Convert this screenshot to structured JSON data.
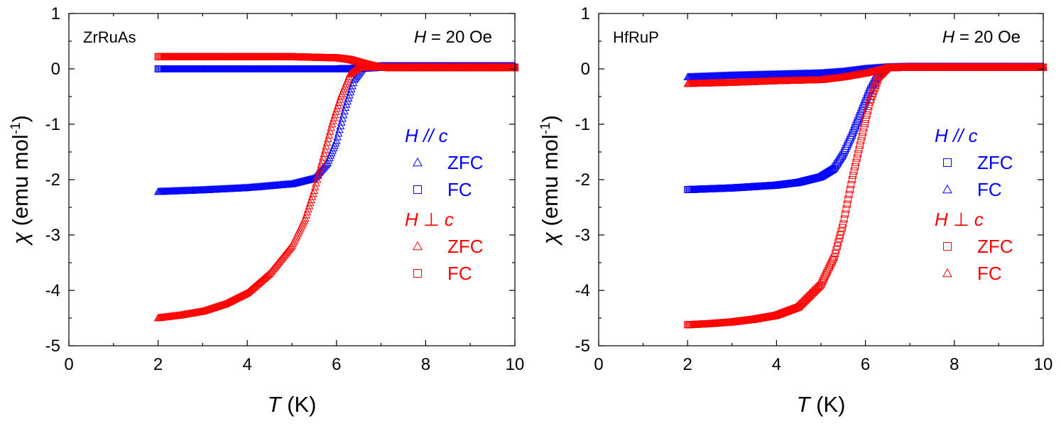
{
  "chart_data": [
    {
      "type": "scatter",
      "sample": "ZrRuAs",
      "field": "H = 20 Oe",
      "xlabel": "T (K)",
      "ylabel": "χ (emu mol-1)",
      "xlim": [
        0,
        10
      ],
      "ylim": [
        -5,
        1
      ],
      "xticks": [
        0,
        2,
        4,
        6,
        8,
        10
      ],
      "yticks": [
        1,
        0,
        -1,
        -2,
        -3,
        -4,
        -5
      ],
      "grid": false,
      "legend_position": "right",
      "legend": [
        {
          "group": "H // c",
          "color": "#0000ff",
          "entries": [
            {
              "marker": "triangle",
              "label": "ZFC"
            },
            {
              "marker": "square",
              "label": "FC"
            }
          ]
        },
        {
          "group": "H ⊥ c",
          "color": "#ff0000",
          "entries": [
            {
              "marker": "triangle",
              "label": "ZFC"
            },
            {
              "marker": "square",
              "label": "FC"
            }
          ]
        }
      ],
      "series": [
        {
          "color": "#0000ff",
          "marker": "triangle",
          "x": [
            2.0,
            3.0,
            4.0,
            5.0,
            5.5,
            5.8,
            6.0,
            6.2,
            6.4,
            6.6,
            7.0,
            8.0,
            10.0
          ],
          "y": [
            -2.22,
            -2.19,
            -2.15,
            -2.08,
            -1.98,
            -1.7,
            -1.3,
            -0.7,
            -0.2,
            0.02,
            0.05,
            0.05,
            0.05
          ]
        },
        {
          "color": "#0000ff",
          "marker": "square",
          "x": [
            2.0,
            3.0,
            4.0,
            5.0,
            6.0,
            6.5,
            6.8,
            7.0,
            8.0,
            10.0
          ],
          "y": [
            0.0,
            0.0,
            0.0,
            0.0,
            0.0,
            0.01,
            0.02,
            0.03,
            0.03,
            0.03
          ]
        },
        {
          "color": "#ff0000",
          "marker": "triangle",
          "x": [
            2.0,
            2.5,
            3.0,
            3.5,
            4.0,
            4.5,
            5.0,
            5.3,
            5.5,
            5.7,
            5.9,
            6.1,
            6.3,
            6.5,
            7.0,
            8.0,
            10.0
          ],
          "y": [
            -4.5,
            -4.45,
            -4.38,
            -4.25,
            -4.05,
            -3.7,
            -3.2,
            -2.7,
            -2.2,
            -1.6,
            -1.0,
            -0.5,
            -0.1,
            0.02,
            0.03,
            0.03,
            0.03
          ]
        },
        {
          "color": "#ff0000",
          "marker": "square",
          "x": [
            2.0,
            3.0,
            4.0,
            5.0,
            5.5,
            6.0,
            6.3,
            6.6,
            6.9,
            7.2,
            8.0,
            10.0
          ],
          "y": [
            0.22,
            0.22,
            0.22,
            0.22,
            0.21,
            0.2,
            0.17,
            0.1,
            0.04,
            0.02,
            0.02,
            0.02
          ]
        }
      ]
    },
    {
      "type": "scatter",
      "sample": "HfRuP",
      "field": "H = 20 Oe",
      "xlabel": "T (K)",
      "ylabel": "χ (emu mol-1)",
      "xlim": [
        0,
        10
      ],
      "ylim": [
        -5,
        1
      ],
      "xticks": [
        0,
        2,
        4,
        6,
        8,
        10
      ],
      "yticks": [
        1,
        0,
        -1,
        -2,
        -3,
        -4,
        -5
      ],
      "grid": false,
      "legend_position": "right",
      "legend": [
        {
          "group": "H // c",
          "color": "#0000ff",
          "entries": [
            {
              "marker": "square",
              "label": "ZFC"
            },
            {
              "marker": "triangle",
              "label": "FC"
            }
          ]
        },
        {
          "group": "H ⊥ c",
          "color": "#ff0000",
          "entries": [
            {
              "marker": "square",
              "label": "ZFC"
            },
            {
              "marker": "triangle",
              "label": "FC"
            }
          ]
        }
      ],
      "series": [
        {
          "color": "#0000ff",
          "marker": "square",
          "x": [
            2.0,
            3.0,
            4.0,
            4.5,
            5.0,
            5.3,
            5.5,
            5.7,
            5.9,
            6.1,
            6.3,
            6.5,
            7.0,
            8.0,
            10.0
          ],
          "y": [
            -2.18,
            -2.15,
            -2.1,
            -2.05,
            -1.95,
            -1.8,
            -1.55,
            -1.2,
            -0.8,
            -0.4,
            -0.1,
            0.02,
            0.03,
            0.03,
            0.03
          ]
        },
        {
          "color": "#0000ff",
          "marker": "triangle",
          "x": [
            2.0,
            3.0,
            4.0,
            5.0,
            5.5,
            6.0,
            6.5,
            7.0,
            8.0,
            10.0
          ],
          "y": [
            -0.15,
            -0.12,
            -0.1,
            -0.08,
            -0.05,
            0.0,
            0.03,
            0.04,
            0.04,
            0.04
          ]
        },
        {
          "color": "#ff0000",
          "marker": "square",
          "x": [
            2.0,
            2.5,
            3.0,
            3.5,
            4.0,
            4.5,
            5.0,
            5.3,
            5.5,
            5.7,
            5.9,
            6.1,
            6.3,
            6.5,
            7.0,
            8.0,
            10.0
          ],
          "y": [
            -4.62,
            -4.6,
            -4.57,
            -4.52,
            -4.45,
            -4.3,
            -3.9,
            -3.4,
            -2.8,
            -2.0,
            -1.3,
            -0.6,
            -0.15,
            0.02,
            0.03,
            0.03,
            0.03
          ]
        },
        {
          "color": "#ff0000",
          "marker": "triangle",
          "x": [
            2.0,
            3.0,
            4.0,
            5.0,
            5.5,
            6.0,
            6.5,
            7.0,
            8.0,
            10.0
          ],
          "y": [
            -0.27,
            -0.25,
            -0.22,
            -0.2,
            -0.15,
            -0.08,
            0.02,
            0.03,
            0.03,
            0.03
          ]
        }
      ]
    }
  ]
}
